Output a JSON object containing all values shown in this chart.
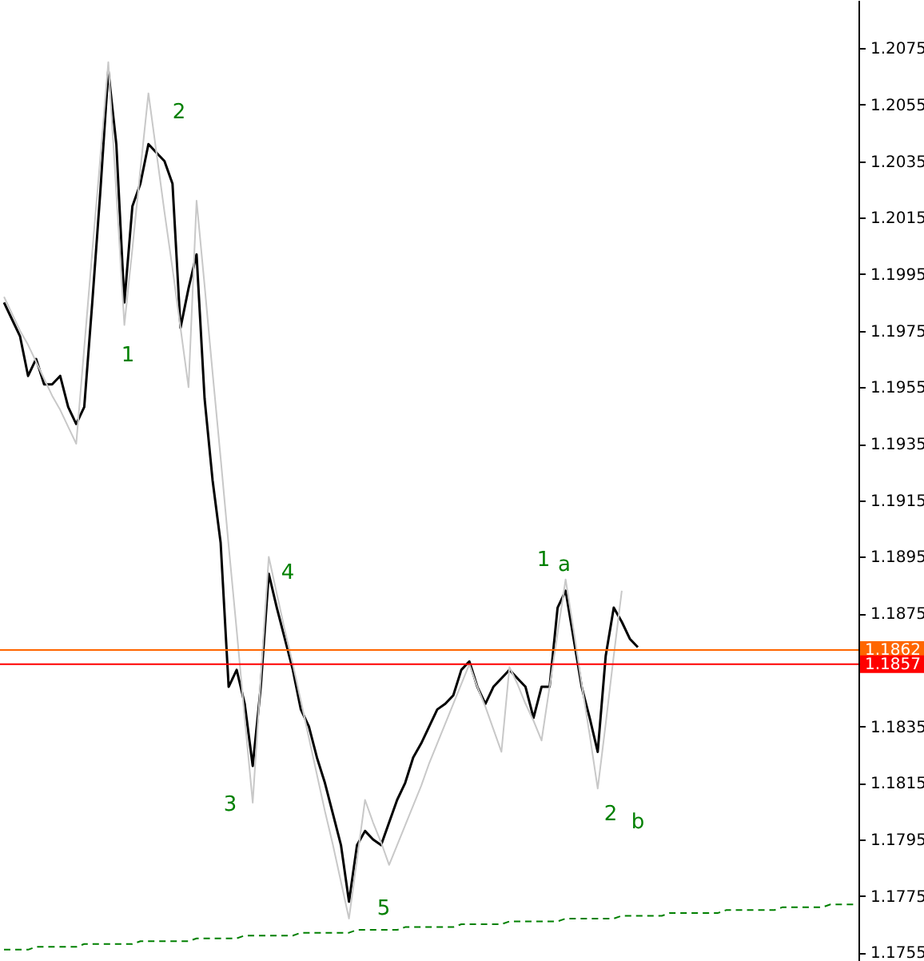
{
  "chart_data": {
    "type": "line",
    "categories": [
      null,
      null,
      null,
      null,
      null,
      null,
      null,
      null,
      null,
      null,
      null,
      null,
      null,
      null,
      null,
      null,
      null,
      null,
      null,
      null,
      null,
      null,
      null,
      null,
      null,
      null,
      null,
      null,
      null,
      null,
      null,
      null,
      null,
      null,
      null,
      null,
      null,
      null,
      null,
      null,
      null,
      null,
      null,
      null,
      null,
      null,
      null,
      null,
      null,
      null,
      null,
      null,
      null,
      null,
      null,
      null,
      null,
      null,
      null,
      null,
      null,
      null,
      null,
      null,
      null,
      null,
      null,
      null,
      null,
      null,
      null,
      null,
      null,
      null,
      null,
      null,
      null,
      null,
      null,
      null,
      null,
      null,
      null,
      null,
      null,
      null,
      null,
      null,
      null,
      null,
      null,
      null,
      null,
      null,
      null,
      null,
      null,
      null,
      null,
      null,
      null,
      null,
      null,
      null,
      null,
      null,
      null
    ],
    "series": [
      {
        "type": "line",
        "color": "#000000",
        "values": [
          1.1985,
          1.1979,
          1.1973,
          1.1959,
          1.1965,
          1.1956,
          1.1956,
          1.1959,
          1.1948,
          1.1942,
          1.1948,
          1.1985,
          1.2024,
          1.2067,
          1.2041,
          1.1985,
          1.2019,
          1.2027,
          1.2041,
          1.2038,
          1.2035,
          1.2027,
          1.1976,
          1.199,
          1.2002,
          1.1951,
          1.1922,
          1.19,
          1.1849,
          1.1855,
          1.1843,
          1.1821,
          1.1849,
          1.1889,
          1.1877,
          1.1866,
          1.1855,
          1.1841,
          1.1835,
          1.1824,
          1.1815,
          1.1804,
          1.1793,
          1.1773,
          1.1793,
          1.1798,
          1.1795,
          1.1793,
          1.1801,
          1.1809,
          1.1815,
          1.1824,
          1.1829,
          1.1835,
          1.1841,
          1.1843,
          1.1846,
          1.1855,
          1.1858,
          1.1849,
          1.1843,
          1.1849,
          1.1852,
          1.1855,
          1.1852,
          1.1849,
          1.1838,
          1.1849,
          1.1849,
          1.1877,
          1.1883,
          1.1866,
          1.1849,
          1.1838,
          1.1826,
          1.186,
          1.1877,
          1.1872,
          1.1866,
          1.1863,
          null,
          null,
          null,
          null,
          null,
          null,
          null,
          null,
          null,
          null,
          null,
          null,
          null,
          null,
          null,
          null,
          null,
          null,
          null,
          null,
          null,
          null,
          null,
          null,
          null,
          null,
          null
        ]
      },
      {
        "type": "line",
        "color": "#c8c8c8",
        "values": [
          1.1987,
          1.1981,
          1.1975,
          1.197,
          1.1964,
          1.1958,
          1.1952,
          1.1947,
          1.1941,
          1.1935,
          1.1969,
          1.2003,
          1.2036,
          1.207,
          1.2024,
          1.1977,
          1.2004,
          1.2032,
          1.2059,
          1.2038,
          1.2017,
          1.1997,
          1.1976,
          1.1955,
          1.2021,
          1.1991,
          1.196,
          1.193,
          1.1899,
          1.1869,
          1.1838,
          1.1808,
          1.1852,
          1.1895,
          1.1882,
          1.1869,
          1.1857,
          1.1844,
          1.1831,
          1.1818,
          1.1805,
          1.1793,
          1.178,
          1.1767,
          1.1788,
          1.1809,
          1.1801,
          1.1794,
          1.1786,
          1.1793,
          1.18,
          1.1807,
          1.1814,
          1.1822,
          1.1829,
          1.1836,
          1.1843,
          1.185,
          1.1857,
          1.1849,
          1.1842,
          1.1834,
          1.1826,
          1.1856,
          1.185,
          1.1843,
          1.1837,
          1.183,
          1.1849,
          1.1868,
          1.1887,
          1.1869,
          1.185,
          1.1832,
          1.1813,
          1.1836,
          1.186,
          1.1883,
          null,
          null,
          null,
          null,
          null,
          null,
          null,
          null,
          null,
          null,
          null,
          null,
          null,
          null,
          null,
          null,
          null,
          null,
          null,
          null,
          null,
          null,
          null,
          null,
          null,
          null,
          null,
          null,
          null
        ]
      },
      {
        "type": "line",
        "color": "#008000",
        "line_style": "dashed",
        "values": [
          1.1756,
          1.1756,
          1.1756,
          1.1756,
          1.1757,
          1.1757,
          1.1757,
          1.1757,
          1.1757,
          1.1757,
          1.1758,
          1.1758,
          1.1758,
          1.1758,
          1.1758,
          1.1758,
          1.1758,
          1.1759,
          1.1759,
          1.1759,
          1.1759,
          1.1759,
          1.1759,
          1.1759,
          1.176,
          1.176,
          1.176,
          1.176,
          1.176,
          1.176,
          1.1761,
          1.1761,
          1.1761,
          1.1761,
          1.1761,
          1.1761,
          1.1761,
          1.1762,
          1.1762,
          1.1762,
          1.1762,
          1.1762,
          1.1762,
          1.1762,
          1.1763,
          1.1763,
          1.1763,
          1.1763,
          1.1763,
          1.1763,
          1.1764,
          1.1764,
          1.1764,
          1.1764,
          1.1764,
          1.1764,
          1.1764,
          1.1765,
          1.1765,
          1.1765,
          1.1765,
          1.1765,
          1.1765,
          1.1766,
          1.1766,
          1.1766,
          1.1766,
          1.1766,
          1.1766,
          1.1766,
          1.1767,
          1.1767,
          1.1767,
          1.1767,
          1.1767,
          1.1767,
          1.1767,
          1.1768,
          1.1768,
          1.1768,
          1.1768,
          1.1768,
          1.1768,
          1.1769,
          1.1769,
          1.1769,
          1.1769,
          1.1769,
          1.1769,
          1.1769,
          1.177,
          1.177,
          1.177,
          1.177,
          1.177,
          1.177,
          1.177,
          1.1771,
          1.1771,
          1.1771,
          1.1771,
          1.1771,
          1.1771,
          1.1772,
          1.1772,
          1.1772,
          1.1772
        ]
      }
    ],
    "ylim": [
      1.1752,
      1.2092
    ],
    "yticks": [
      1.1755,
      1.1775,
      1.1795,
      1.1815,
      1.1835,
      1.1875,
      1.1895,
      1.1915,
      1.1935,
      1.1955,
      1.1975,
      1.1995,
      1.2015,
      1.2035,
      1.2055,
      1.2075
    ],
    "tick_labels": "y",
    "grid": false,
    "line_style": "solid",
    "ref_lines": [
      {
        "axis": "y",
        "value": 1.1862,
        "label": "1.1862",
        "color": "#ff6600"
      },
      {
        "axis": "y",
        "value": 1.1857,
        "label": "1.1857",
        "color": "#ff0000"
      }
    ],
    "annotations": [
      "1",
      "2",
      "3",
      "4",
      "5",
      "1",
      "a",
      "2",
      "b"
    ]
  }
}
